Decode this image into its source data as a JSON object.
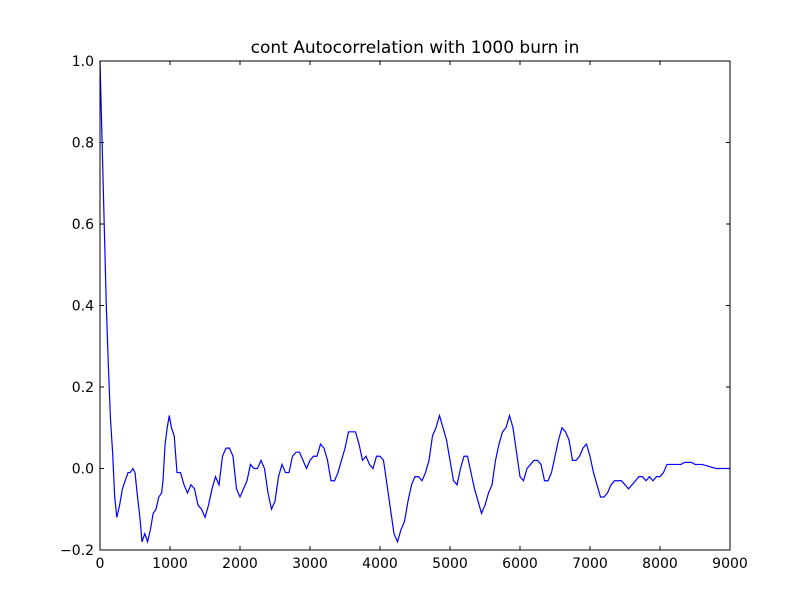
{
  "chart_data": {
    "type": "line",
    "title": "cont Autocorrelation with 1000 burn in",
    "x": [
      0,
      30,
      60,
      90,
      120,
      150,
      180,
      210,
      240,
      280,
      320,
      360,
      400,
      430,
      470,
      500,
      530,
      570,
      600,
      640,
      680,
      720,
      760,
      800,
      840,
      880,
      900,
      930,
      960,
      990,
      1020,
      1060,
      1100,
      1150,
      1200,
      1250,
      1300,
      1350,
      1400,
      1450,
      1500,
      1550,
      1600,
      1650,
      1700,
      1750,
      1800,
      1850,
      1900,
      1950,
      2000,
      2050,
      2100,
      2150,
      2200,
      2250,
      2300,
      2350,
      2400,
      2450,
      2500,
      2550,
      2600,
      2650,
      2700,
      2750,
      2800,
      2850,
      2900,
      2950,
      3000,
      3050,
      3100,
      3150,
      3200,
      3250,
      3300,
      3350,
      3400,
      3450,
      3500,
      3550,
      3600,
      3650,
      3700,
      3750,
      3800,
      3850,
      3900,
      3950,
      4000,
      4050,
      4100,
      4150,
      4200,
      4250,
      4300,
      4350,
      4400,
      4450,
      4500,
      4550,
      4600,
      4650,
      4700,
      4750,
      4800,
      4850,
      4900,
      4950,
      5000,
      5050,
      5100,
      5150,
      5200,
      5250,
      5300,
      5350,
      5400,
      5450,
      5500,
      5550,
      5600,
      5650,
      5700,
      5750,
      5800,
      5850,
      5900,
      5950,
      6000,
      6050,
      6100,
      6150,
      6200,
      6250,
      6300,
      6350,
      6400,
      6450,
      6500,
      6550,
      6600,
      6650,
      6700,
      6750,
      6800,
      6850,
      6900,
      6950,
      7000,
      7050,
      7100,
      7150,
      7200,
      7250,
      7300,
      7350,
      7400,
      7450,
      7500,
      7550,
      7600,
      7650,
      7700,
      7750,
      7800,
      7850,
      7900,
      7950,
      8000,
      8050,
      8100,
      8150,
      8200,
      8250,
      8300,
      8350,
      8400,
      8450,
      8500,
      8550,
      8600,
      8700,
      8800,
      8900,
      9000
    ],
    "series": [
      {
        "name": "autocorrelation",
        "color": "#0000ff",
        "values": [
          1.0,
          0.8,
          0.6,
          0.4,
          0.25,
          0.12,
          0.04,
          -0.07,
          -0.12,
          -0.09,
          -0.05,
          -0.03,
          -0.01,
          -0.01,
          0.0,
          -0.01,
          -0.06,
          -0.12,
          -0.18,
          -0.16,
          -0.18,
          -0.15,
          -0.11,
          -0.1,
          -0.07,
          -0.06,
          -0.03,
          0.06,
          0.1,
          0.13,
          0.1,
          0.08,
          -0.01,
          -0.01,
          -0.04,
          -0.06,
          -0.04,
          -0.05,
          -0.09,
          -0.1,
          -0.12,
          -0.09,
          -0.05,
          -0.02,
          -0.04,
          0.03,
          0.05,
          0.05,
          0.03,
          -0.05,
          -0.07,
          -0.05,
          -0.03,
          0.01,
          0.0,
          0.0,
          0.02,
          0.0,
          -0.06,
          -0.1,
          -0.08,
          -0.02,
          0.01,
          -0.01,
          -0.01,
          0.03,
          0.04,
          0.04,
          0.02,
          0.0,
          0.02,
          0.03,
          0.03,
          0.06,
          0.05,
          0.02,
          -0.03,
          -0.03,
          -0.01,
          0.02,
          0.05,
          0.09,
          0.09,
          0.09,
          0.06,
          0.02,
          0.03,
          0.01,
          0.0,
          0.03,
          0.03,
          0.02,
          -0.04,
          -0.1,
          -0.16,
          -0.18,
          -0.15,
          -0.13,
          -0.08,
          -0.04,
          -0.02,
          -0.02,
          -0.03,
          -0.01,
          0.02,
          0.08,
          0.1,
          0.13,
          0.1,
          0.07,
          0.02,
          -0.03,
          -0.04,
          0.0,
          0.03,
          0.03,
          -0.01,
          -0.05,
          -0.08,
          -0.11,
          -0.09,
          -0.06,
          -0.04,
          0.02,
          0.06,
          0.09,
          0.1,
          0.13,
          0.1,
          0.04,
          -0.02,
          -0.03,
          0.0,
          0.01,
          0.02,
          0.02,
          0.01,
          -0.03,
          -0.03,
          -0.01,
          0.03,
          0.07,
          0.1,
          0.09,
          0.07,
          0.02,
          0.02,
          0.03,
          0.05,
          0.06,
          0.03,
          -0.01,
          -0.04,
          -0.07,
          -0.07,
          -0.06,
          -0.04,
          -0.03,
          -0.03,
          -0.03,
          -0.04,
          -0.05,
          -0.04,
          -0.03,
          -0.02,
          -0.02,
          -0.03,
          -0.02,
          -0.03,
          -0.02,
          -0.02,
          -0.01,
          0.01,
          0.01,
          0.01,
          0.01,
          0.01,
          0.015,
          0.015,
          0.015,
          0.01,
          0.01,
          0.01,
          0.005,
          0.0,
          0.0,
          0.0
        ]
      }
    ],
    "xlim": [
      0,
      9000
    ],
    "xticks": [
      0,
      1000,
      2000,
      3000,
      4000,
      5000,
      6000,
      7000,
      8000,
      9000
    ],
    "ylim": [
      -0.2,
      1.0
    ],
    "yticks": [
      {
        "value": -0.2,
        "label": "−0.2"
      },
      {
        "value": 0,
        "label": "0.0"
      },
      {
        "value": 0.2,
        "label": "0.2"
      },
      {
        "value": 0.4,
        "label": "0.4"
      },
      {
        "value": 0.6,
        "label": "0.6"
      },
      {
        "value": 0.8,
        "label": "0.8"
      },
      {
        "value": 1.0,
        "label": "1.0"
      }
    ]
  }
}
